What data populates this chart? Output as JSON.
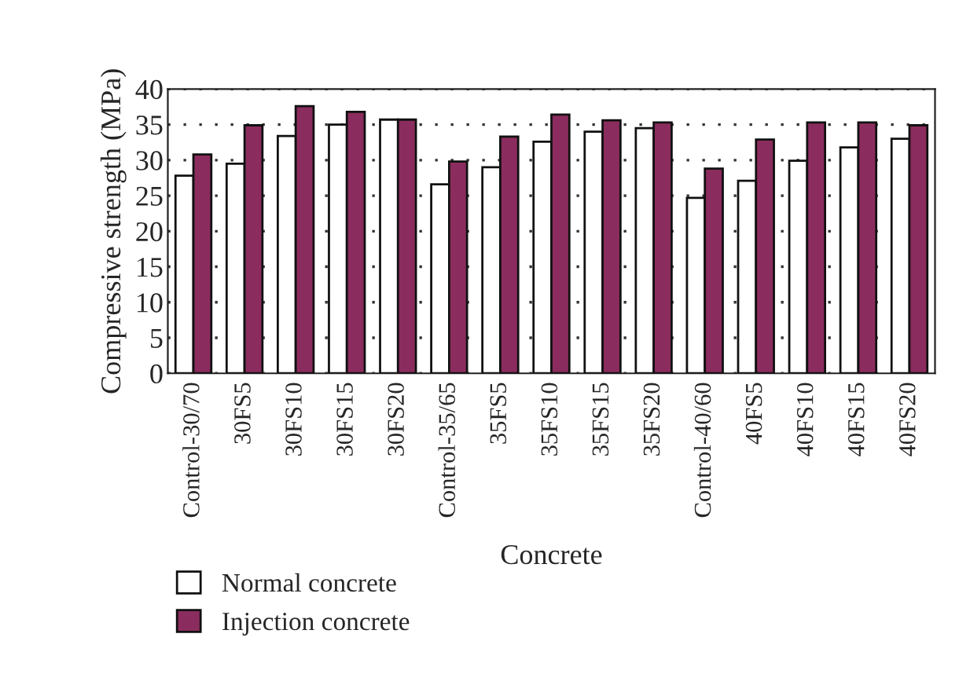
{
  "chart_data": {
    "type": "bar",
    "xlabel": "Concrete",
    "ylabel": "Compressive strength (MPa)",
    "categories": [
      "Control-30/70",
      "30FS5",
      "30FS10",
      "30FS15",
      "30FS20",
      "Control-35/65",
      "35FS5",
      "35FS10",
      "35FS15",
      "35FS20",
      "Control-40/60",
      "40FS5",
      "40FS10",
      "40FS15",
      "40FS20"
    ],
    "series": [
      {
        "name": "Normal concrete",
        "color": "#ffffff",
        "values": [
          27.8,
          29.5,
          33.4,
          35.0,
          35.7,
          26.6,
          29.0,
          32.6,
          34.0,
          34.5,
          24.7,
          27.1,
          29.9,
          31.8,
          33.0
        ]
      },
      {
        "name": "Injection concrete",
        "color": "#8b2c5e",
        "values": [
          30.8,
          34.9,
          37.6,
          36.8,
          35.7,
          29.8,
          33.3,
          36.4,
          35.6,
          35.3,
          28.8,
          32.9,
          35.3,
          35.3,
          34.9
        ]
      }
    ],
    "ylim": [
      0,
      40
    ],
    "yticks": [
      0,
      5,
      10,
      15,
      20,
      25,
      30,
      35,
      40
    ],
    "grid": "y",
    "legend": "bottom"
  }
}
